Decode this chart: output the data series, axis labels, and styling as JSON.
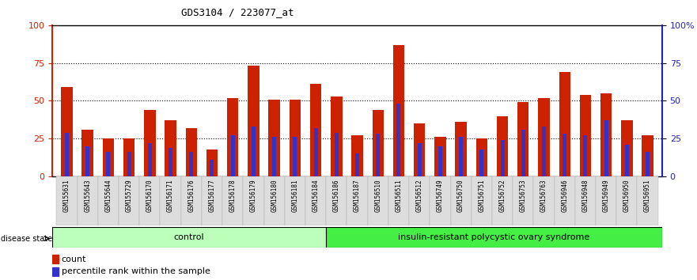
{
  "title": "GDS3104 / 223077_at",
  "samples": [
    "GSM155631",
    "GSM155643",
    "GSM155644",
    "GSM155729",
    "GSM156170",
    "GSM156171",
    "GSM156176",
    "GSM156177",
    "GSM156178",
    "GSM156179",
    "GSM156180",
    "GSM156181",
    "GSM156184",
    "GSM156186",
    "GSM156187",
    "GSM156510",
    "GSM156511",
    "GSM156512",
    "GSM156749",
    "GSM156750",
    "GSM156751",
    "GSM156752",
    "GSM156753",
    "GSM156763",
    "GSM156946",
    "GSM156948",
    "GSM156949",
    "GSM156950",
    "GSM156951"
  ],
  "counts": [
    59,
    31,
    25,
    25,
    44,
    37,
    32,
    18,
    52,
    73,
    51,
    51,
    61,
    53,
    27,
    44,
    87,
    35,
    26,
    36,
    25,
    40,
    49,
    52,
    69,
    54,
    55,
    37,
    27
  ],
  "percentile_ranks": [
    29,
    20,
    16,
    16,
    22,
    19,
    16,
    11,
    27,
    33,
    26,
    26,
    32,
    29,
    15,
    28,
    48,
    22,
    20,
    26,
    18,
    24,
    31,
    33,
    28,
    27,
    37,
    21,
    16
  ],
  "bar_color": "#cc2200",
  "pct_color": "#3333cc",
  "control_count": 13,
  "disease_count": 16,
  "control_label": "control",
  "disease_label": "insulin-resistant polycystic ovary syndrome",
  "control_bg": "#bbffbb",
  "disease_bg": "#44ee44",
  "yticks_left": [
    0,
    25,
    50,
    75,
    100
  ],
  "yticks_right": [
    "0",
    "25",
    "50",
    "75",
    "100%"
  ],
  "ymax": 100,
  "grid_values": [
    25,
    50,
    75
  ],
  "left_axis_color": "#cc2200",
  "right_axis_color": "#2222bb",
  "legend_count_label": "count",
  "legend_pct_label": "percentile rank within the sample"
}
